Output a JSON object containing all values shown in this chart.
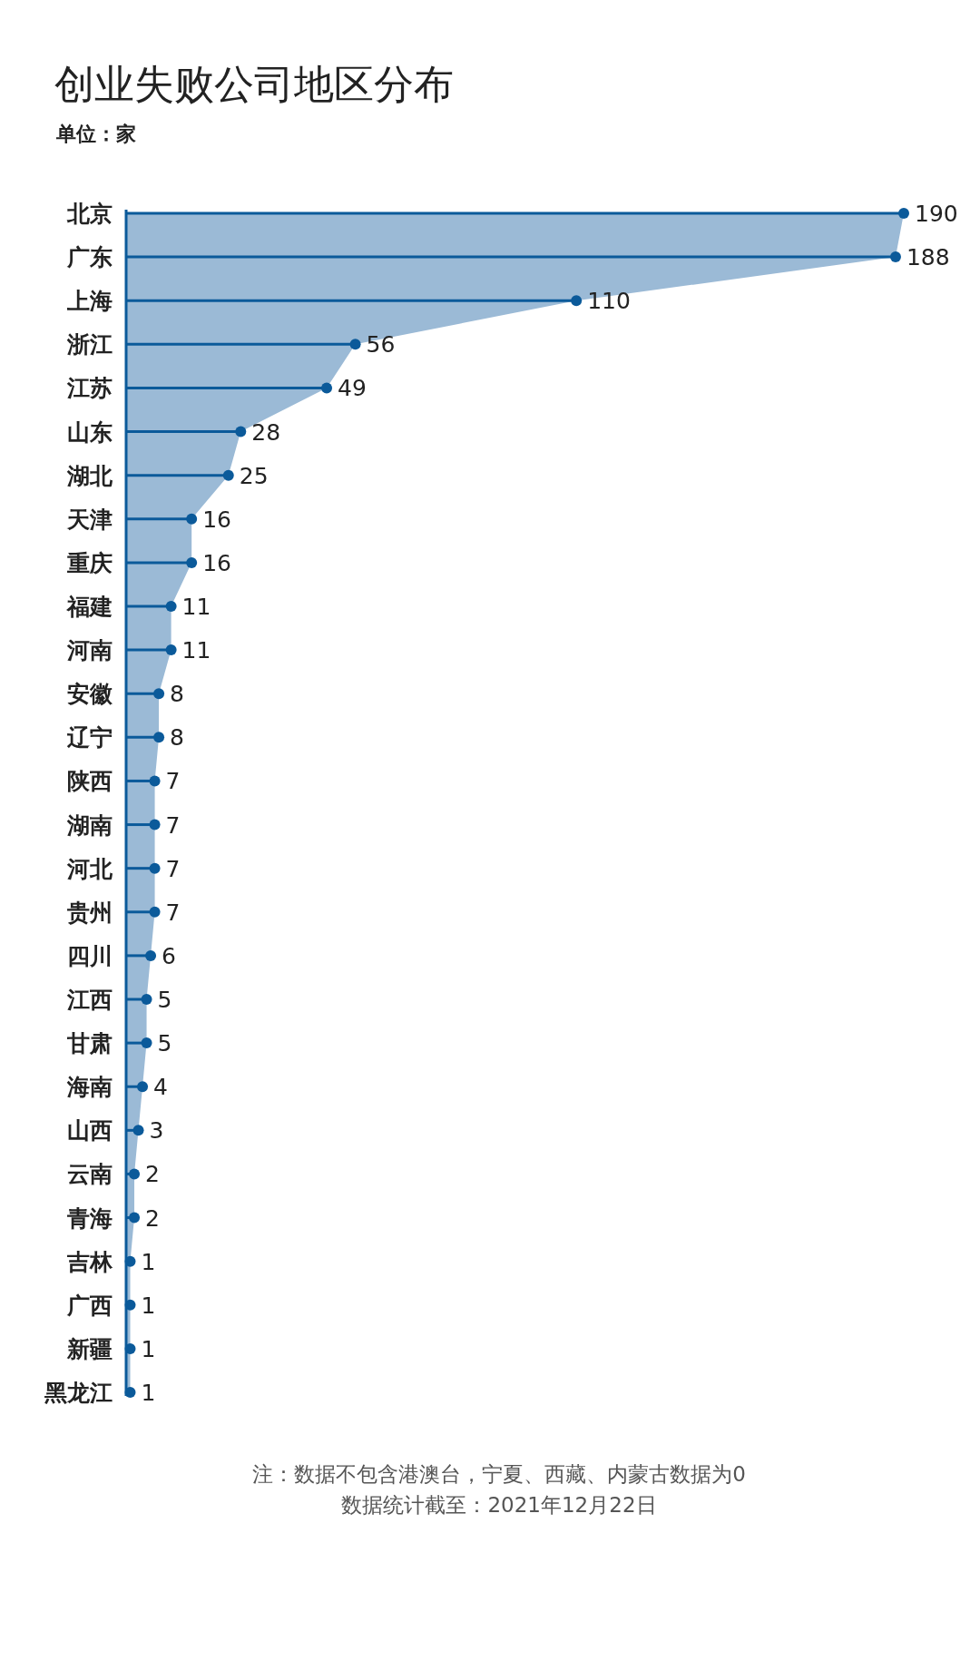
{
  "chart_data": {
    "type": "lollipop",
    "orientation": "horizontal",
    "title": "创业失败公司地区分布",
    "subtitle": "单位：家",
    "categories": [
      "北京",
      "广东",
      "上海",
      "浙江",
      "江苏",
      "山东",
      "湖北",
      "天津",
      "重庆",
      "福建",
      "河南",
      "安徽",
      "辽宁",
      "陕西",
      "湖南",
      "河北",
      "贵州",
      "四川",
      "江西",
      "甘肃",
      "海南",
      "山西",
      "云南",
      "青海",
      "吉林",
      "广西",
      "新疆",
      "黑龙江"
    ],
    "series": [
      {
        "type": "area",
        "color": "#9bbad6",
        "values": [
          190,
          188,
          110,
          56,
          49,
          28,
          25,
          16,
          16,
          11,
          11,
          8,
          8,
          7,
          7,
          7,
          7,
          6,
          5,
          5,
          4,
          3,
          2,
          2,
          1,
          1,
          1,
          1
        ]
      },
      {
        "color": "#0b5a9a",
        "values": [
          190,
          188,
          110,
          56,
          49,
          28,
          25,
          16,
          16,
          11,
          11,
          8,
          8,
          7,
          7,
          7,
          7,
          6,
          5,
          5,
          4,
          3,
          2,
          2,
          1,
          1,
          1,
          1
        ],
        "value_labels": [
          "190",
          "188",
          "110",
          "56",
          "49",
          "28",
          "25",
          "16",
          "16",
          "11",
          "11",
          "8",
          "8",
          "7",
          "7",
          "7",
          "7",
          "6",
          "5",
          "5",
          "4",
          "3",
          "2",
          "2",
          "1",
          "1",
          "1",
          "1"
        ]
      }
    ],
    "annotations": [
      "注：数据不包含港澳台，宁夏、西藏、内蒙古数据为0",
      "数据统计截至：2021年12月22日"
    ]
  }
}
